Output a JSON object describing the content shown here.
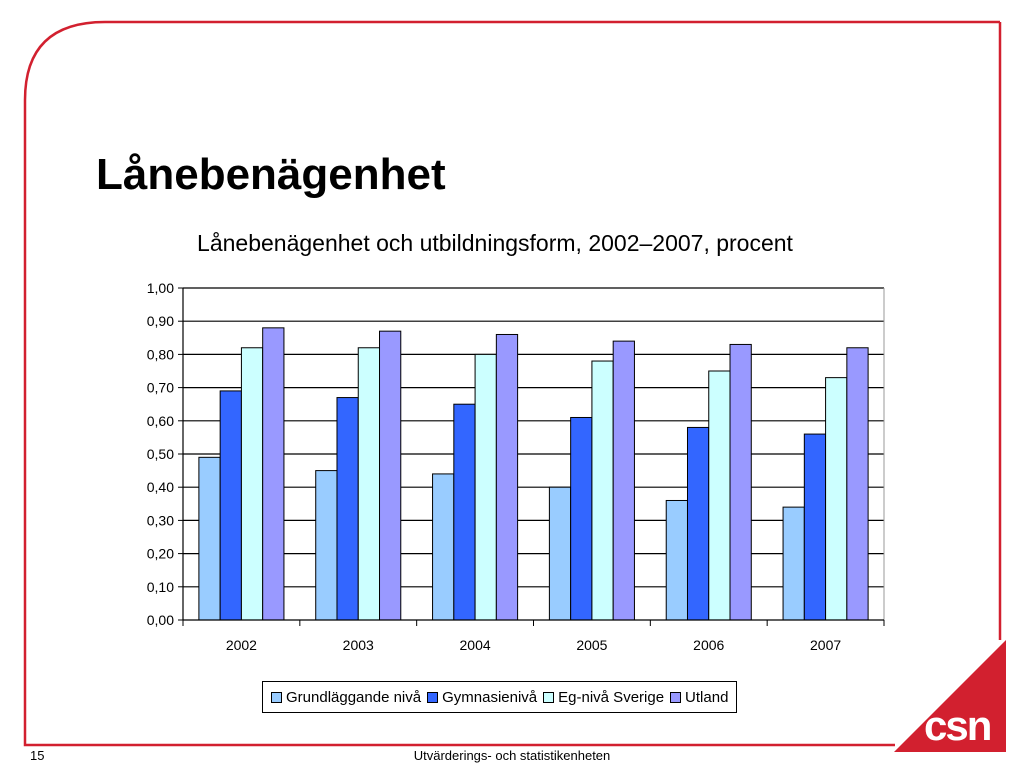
{
  "slide": {
    "title": "Lånebenägenhet",
    "page_number": "15",
    "footer": "Utvärderings- och statistikenheten",
    "logo_text": "csn",
    "accent_color": "#d2202f"
  },
  "chart_data": {
    "type": "bar",
    "title": "Lånebenägenhet och utbildningsform, 2002–2007, procent",
    "xlabel": "",
    "ylabel": "",
    "categories": [
      "2002",
      "2003",
      "2004",
      "2005",
      "2006",
      "2007"
    ],
    "y_ticks": [
      "0,00",
      "0,10",
      "0,20",
      "0,30",
      "0,40",
      "0,50",
      "0,60",
      "0,70",
      "0,80",
      "0,90",
      "1,00"
    ],
    "ylim": [
      0,
      1
    ],
    "grid": true,
    "legend_position": "bottom",
    "series": [
      {
        "name": "Grundläggande nivå",
        "color": "#99ccff",
        "values": [
          0.49,
          0.45,
          0.44,
          0.4,
          0.36,
          0.34
        ]
      },
      {
        "name": "Gymnasienivå",
        "color": "#3366ff",
        "values": [
          0.69,
          0.67,
          0.65,
          0.61,
          0.58,
          0.56
        ]
      },
      {
        "name": "Eg-nivå Sverige",
        "color": "#ccffff",
        "values": [
          0.82,
          0.82,
          0.8,
          0.78,
          0.75,
          0.73
        ]
      },
      {
        "name": "Utland",
        "color": "#9999ff",
        "values": [
          0.88,
          0.87,
          0.86,
          0.84,
          0.83,
          0.82
        ]
      }
    ]
  }
}
